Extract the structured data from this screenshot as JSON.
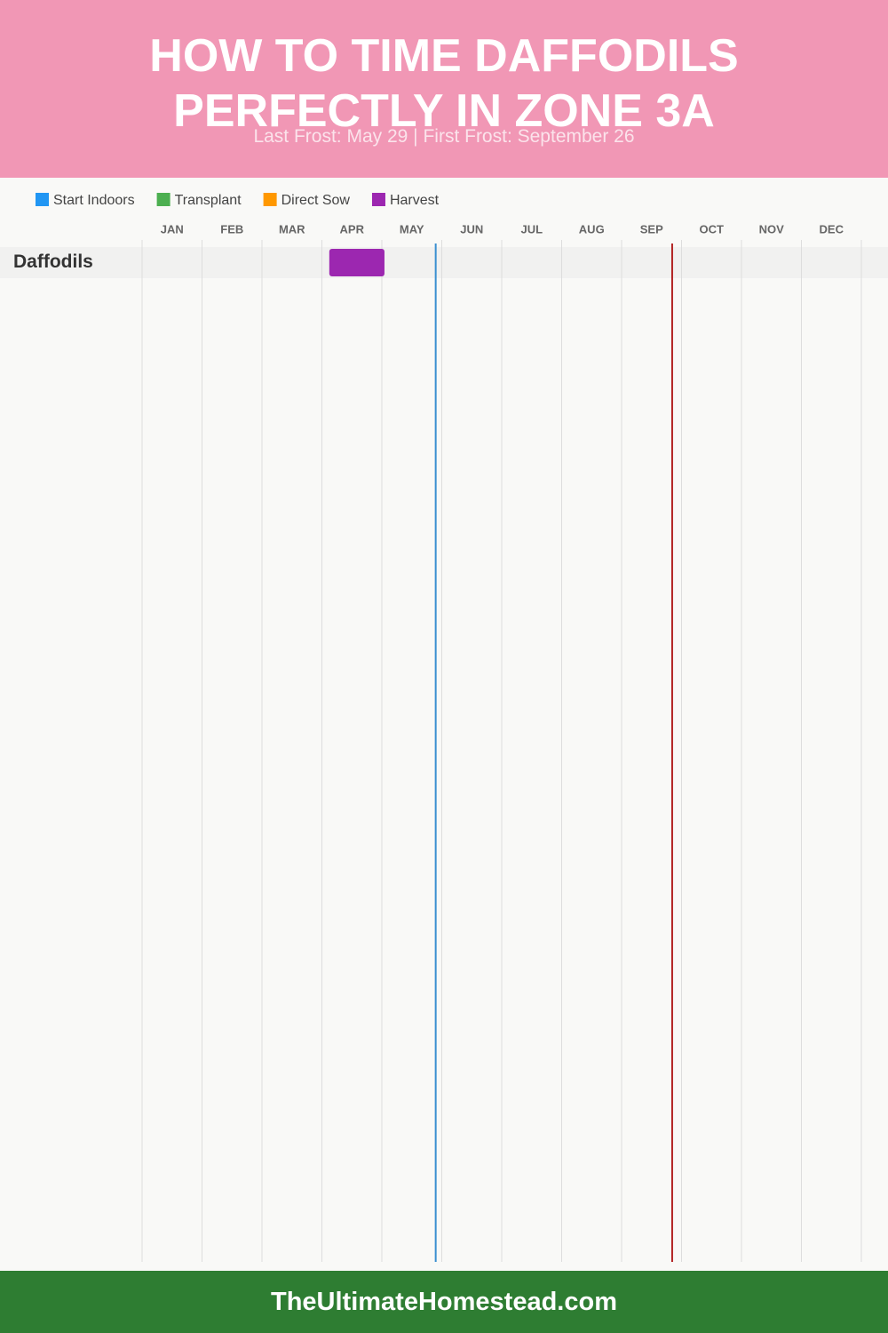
{
  "header": {
    "title": "HOW TO TIME DAFFODILS PERFECTLY IN ZONE 3A",
    "subtitle": "Last Frost: May 29 | First Frost: September 26"
  },
  "chart_data": {
    "type": "gantt",
    "series": [
      {
        "name": "Start Indoors",
        "color": "#2196f3"
      },
      {
        "name": "Transplant",
        "color": "#4caf50"
      },
      {
        "name": "Direct Sow",
        "color": "#ff9800"
      },
      {
        "name": "Harvest",
        "color": "#9c27b0"
      }
    ],
    "months": [
      "JAN",
      "FEB",
      "MAR",
      "APR",
      "MAY",
      "JUN",
      "JUL",
      "AUG",
      "SEP",
      "OCT",
      "NOV",
      "DEC"
    ],
    "xlim": [
      0,
      365
    ],
    "rows": [
      {
        "name": "Daffodils",
        "ranges": [
          null,
          null,
          null,
          [
            95,
            123
          ]
        ]
      }
    ],
    "markers": [
      {
        "value": 149,
        "color": "#3a8fd0"
      },
      {
        "value": 269,
        "color": "#b22222"
      }
    ]
  },
  "footer": {
    "text": "TheUltimateHomestead.com"
  }
}
